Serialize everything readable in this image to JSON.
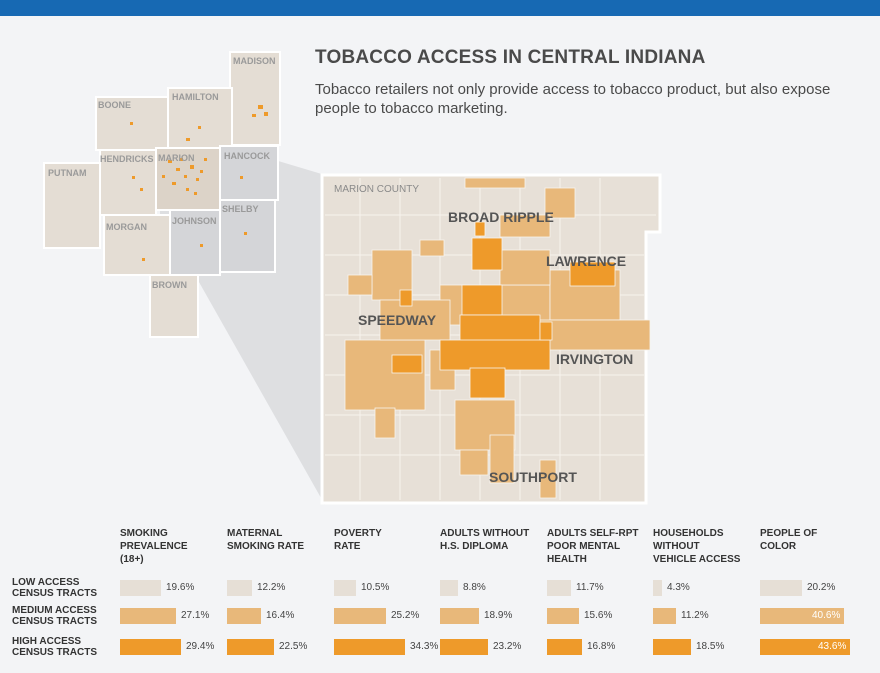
{
  "title": "TOBACCO ACCESS IN CENTRAL INDIANA",
  "subtitle": "Tobacco retailers not only provide access to tobacco product, but also expose people to tobacco marketing.",
  "counties": [
    "MADISON",
    "BOONE",
    "HAMILTON",
    "PUTNAM",
    "HENDRICKS",
    "MARION",
    "HANCOCK",
    "SHELBY",
    "MORGAN",
    "JOHNSON",
    "BROWN"
  ],
  "inset_label": "MARION COUNTY",
  "neighborhoods": [
    "BROAD RIPPLE",
    "LAWRENCE",
    "SPEEDWAY",
    "IRVINGTON",
    "SOUTHPORT"
  ],
  "colors": {
    "low": "#e6dfd6",
    "medium": "#e8b87a",
    "high": "#ee9a2a",
    "accent": "#1769b3"
  },
  "chart_data": {
    "type": "bar",
    "categories": [
      "SMOKING PREVALENCE (18+)",
      "MATERNAL SMOKING RATE",
      "POVERTY RATE",
      "ADULTS WITHOUT H.S. DIPLOMA",
      "ADULTS SELF-RPT POOR MENTAL HEALTH",
      "HOUSEHOLDS WITHOUT VEHICLE ACCESS",
      "PEOPLE OF COLOR"
    ],
    "category_lines": [
      [
        "SMOKING",
        "PREVALENCE",
        "(18+)"
      ],
      [
        "MATERNAL",
        "SMOKING RATE"
      ],
      [
        "POVERTY",
        "RATE"
      ],
      [
        "ADULTS WITHOUT",
        "H.S. DIPLOMA"
      ],
      [
        "ADULTS SELF-RPT",
        "POOR MENTAL",
        "HEALTH"
      ],
      [
        "HOUSEHOLDS",
        "WITHOUT",
        "VEHICLE ACCESS"
      ],
      [
        "PEOPLE OF",
        "COLOR"
      ]
    ],
    "series": [
      {
        "name": "LOW ACCESS CENSUS TRACTS",
        "lines": [
          "LOW ACCESS",
          "CENSUS TRACTS"
        ],
        "values": [
          19.6,
          12.2,
          10.5,
          8.8,
          11.7,
          4.3,
          20.2
        ],
        "labels": [
          "19.6%",
          "12.2%",
          "10.5%",
          "8.8%",
          "11.7%",
          "4.3%",
          "20.2%"
        ]
      },
      {
        "name": "MEDIUM ACCESS CENSUS TRACTS",
        "lines": [
          "MEDIUM ACCESS",
          "CENSUS TRACTS"
        ],
        "values": [
          27.1,
          16.4,
          25.2,
          18.9,
          15.6,
          11.2,
          40.6
        ],
        "labels": [
          "27.1%",
          "16.4%",
          "25.2%",
          "18.9%",
          "15.6%",
          "11.2%",
          "40.6%"
        ]
      },
      {
        "name": "HIGH ACCESS CENSUS TRACTS",
        "lines": [
          "HIGH ACCESS",
          "CENSUS TRACTS"
        ],
        "values": [
          29.4,
          22.5,
          34.3,
          23.2,
          16.8,
          18.5,
          43.6
        ],
        "labels": [
          "29.4%",
          "22.5%",
          "34.3%",
          "23.2%",
          "16.8%",
          "18.5%",
          "43.6%"
        ]
      }
    ]
  }
}
